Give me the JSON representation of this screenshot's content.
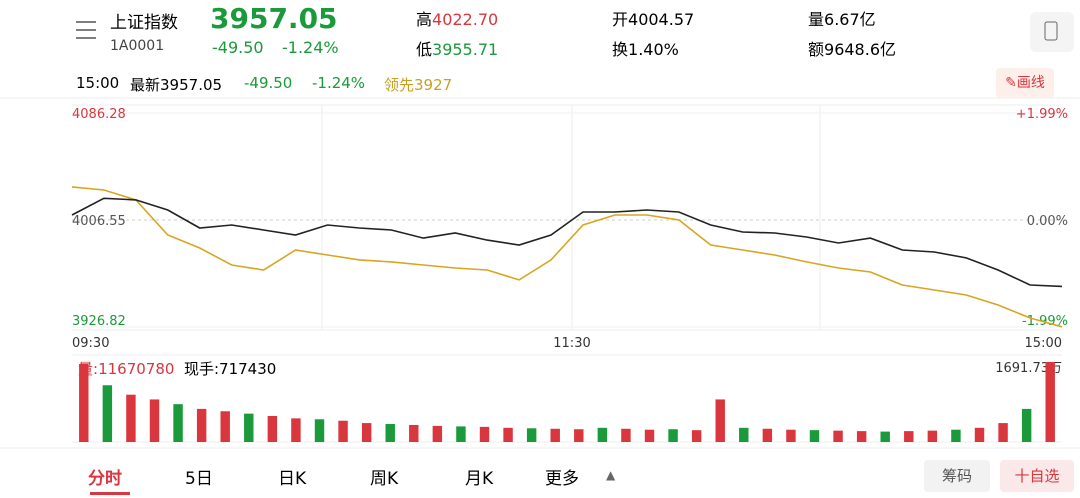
{
  "header": {
    "name": "上证指数",
    "code": "1A0001",
    "price": "3957.05",
    "change": "-49.50",
    "change_pct": "-1.24%",
    "stats": [
      {
        "label": "高",
        "value": "4022.70"
      },
      {
        "label": "开",
        "value": "4004.57"
      },
      {
        "label": "量",
        "value": "6.67亿"
      },
      {
        "label": "低",
        "value": "3955.71"
      },
      {
        "label": "换",
        "value": "1.40%"
      },
      {
        "label": "额",
        "value": "9648.6亿"
      }
    ]
  },
  "infobar": {
    "time": "15:00",
    "latest_label": "最新",
    "latest": "3957.05",
    "change": "-49.50",
    "change_pct": "-1.24%",
    "lead_label": "领先",
    "lead": "3927",
    "draw_button": "画线"
  },
  "chart": {
    "ylim": [
      3926.82,
      4086.28
    ],
    "yticks": [
      4086.28,
      4006.55,
      3926.82
    ],
    "pct_labels": [
      "+1.99%",
      "0.00%",
      "-1.99%"
    ],
    "x_labels": [
      "09:30",
      "11:30",
      "15:00"
    ],
    "series": [
      {
        "color": "#222222",
        "values": [
          4010.3,
          4022.7,
          4021.5,
          4014.0,
          4000.6,
          4002.8,
          3999.1,
          3995.4,
          4002.8,
          4000.6,
          3999.1,
          3993.1,
          3996.9,
          3991.6,
          3987.9,
          3995.4,
          4012.5,
          4012.5,
          4014.0,
          4012.5,
          4002.8,
          3997.6,
          3996.9,
          3993.9,
          3989.4,
          3993.1,
          3984.2,
          3982.7,
          3978.3,
          3969.3,
          3958.1,
          3957.05
        ]
      },
      {
        "color": "#d9a520",
        "values": [
          4031.2,
          4028.9,
          4021.5,
          3995.4,
          3985.7,
          3973.0,
          3969.3,
          3984.2,
          3980.5,
          3976.8,
          3975.3,
          3973.0,
          3970.8,
          3969.3,
          3961.9,
          3976.8,
          4002.8,
          4010.3,
          4010.3,
          4006.6,
          3987.9,
          3984.2,
          3980.5,
          3975.3,
          3970.8,
          3967.8,
          3958.1,
          3954.4,
          3950.7,
          3943.2,
          3933.5,
          3927
        ]
      }
    ]
  },
  "volume": {
    "label": "量:",
    "total": "11670780",
    "hand_label": "现手:",
    "hand": "717430",
    "ylim": [
      0,
      1691.73
    ],
    "max_label": "1691.73万",
    "values": [
      1650,
      1200,
      1000,
      900,
      800,
      700,
      650,
      600,
      550,
      500,
      480,
      450,
      400,
      380,
      360,
      340,
      330,
      320,
      300,
      290,
      280,
      270,
      300,
      280,
      260,
      270,
      250,
      900,
      300,
      280,
      260,
      250,
      240,
      230,
      220,
      230,
      240,
      260,
      300,
      400,
      700,
      1691.73
    ]
  },
  "tabs": [
    "分时",
    "5日",
    "日K",
    "周K",
    "月K",
    "更多"
  ],
  "buttons": [
    "筹码",
    "十自选"
  ]
}
